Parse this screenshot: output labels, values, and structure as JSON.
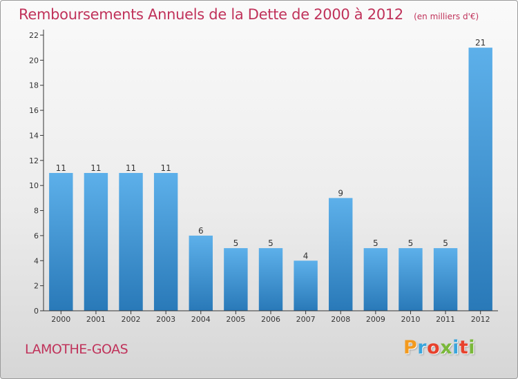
{
  "title": "Remboursements Annuels de la Dette de 2000 à 2012",
  "unit_note": "(en milliers d'€)",
  "place": "LAMOTHE-GOAS",
  "brand": {
    "letters": [
      "P",
      "r",
      "o",
      "x",
      "i",
      "t",
      "i"
    ],
    "colors": [
      "#f39a1e",
      "#3aa5dc",
      "#e8412c",
      "#7ab83a",
      "#3aa5dc",
      "#e8412c",
      "#7ab83a"
    ]
  },
  "colors": {
    "bar_light": "#5db0ea",
    "bar_dark": "#2979b8",
    "title": "#c0325a"
  },
  "chart_data": {
    "type": "bar",
    "categories": [
      "2000",
      "2001",
      "2002",
      "2003",
      "2004",
      "2005",
      "2006",
      "2007",
      "2008",
      "2009",
      "2010",
      "2011",
      "2012"
    ],
    "values": [
      11,
      11,
      11,
      11,
      6,
      5,
      5,
      4,
      9,
      5,
      5,
      5,
      21
    ],
    "data_labels": [
      "11",
      "11",
      "11",
      "11",
      "6",
      "5",
      "5",
      "4",
      "9",
      "5",
      "5",
      "5",
      "21"
    ],
    "yticks": [
      "0",
      "2",
      "4",
      "6",
      "8",
      "10",
      "12",
      "14",
      "16",
      "18",
      "20",
      "22"
    ],
    "ylim": [
      0,
      22
    ],
    "grid": false
  }
}
